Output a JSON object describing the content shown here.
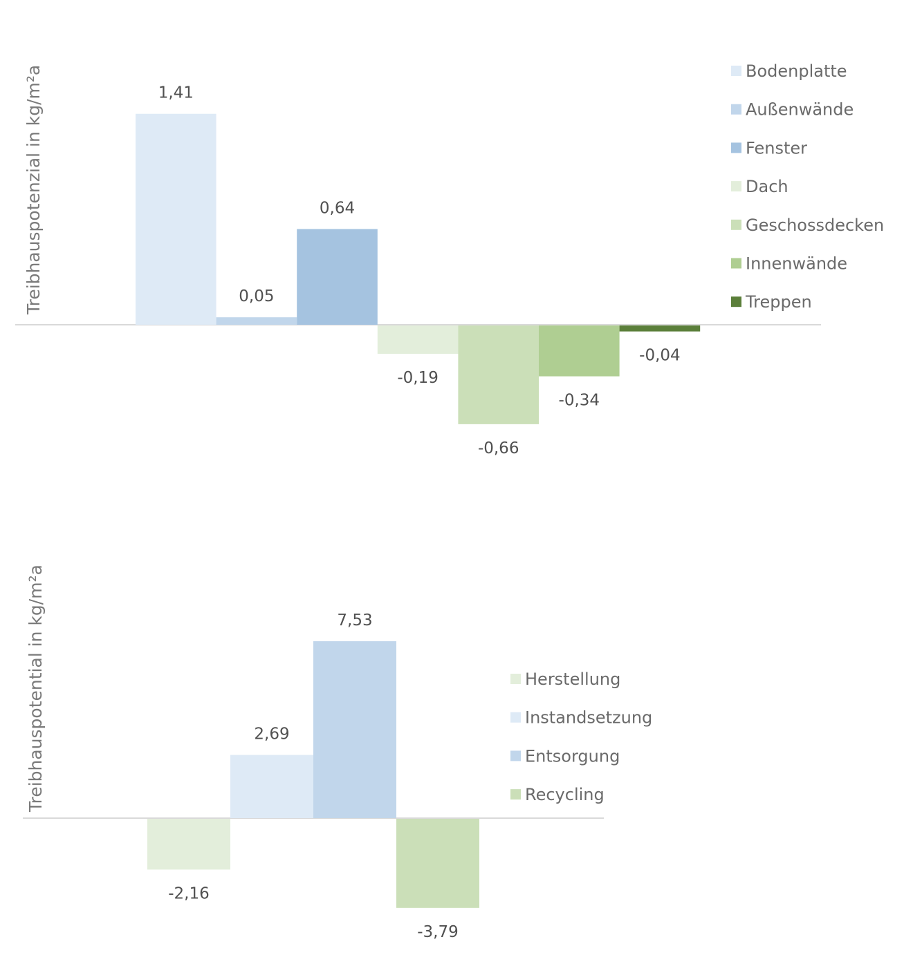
{
  "chart_data": [
    {
      "type": "bar",
      "title": "",
      "xlabel": "",
      "ylabel": "Treibhauspotenzial in kg/m²a",
      "grid": false,
      "legend_position": "right",
      "categories": [
        "Bodenplatte",
        "Außenwände",
        "Fenster",
        "Dach",
        "Geschossdecken",
        "Innenwände",
        "Treppen"
      ],
      "series": [
        {
          "name": "Bodenplatte",
          "values": [
            1.41
          ],
          "label": "1,41",
          "color": "#DEEAF6"
        },
        {
          "name": "Außenwände",
          "values": [
            0.05
          ],
          "label": "0,05",
          "color": "#C1D6EB"
        },
        {
          "name": "Fenster",
          "values": [
            0.64
          ],
          "label": "0,64",
          "color": "#A5C3E0"
        },
        {
          "name": "Dach",
          "values": [
            -0.19
          ],
          "label": "-0,19",
          "color": "#E3EEDB"
        },
        {
          "name": "Geschossdecken",
          "values": [
            -0.66
          ],
          "label": "-0,66",
          "color": "#CBDFB8"
        },
        {
          "name": "Innenwände",
          "values": [
            -0.34
          ],
          "label": "-0,34",
          "color": "#AFCE92"
        },
        {
          "name": "Treppen",
          "values": [
            -0.04
          ],
          "label": "-0,04",
          "color": "#5B7F3A"
        }
      ]
    },
    {
      "type": "bar",
      "title": "",
      "xlabel": "",
      "ylabel": "Treibhauspotential in kg/m²a",
      "grid": false,
      "legend_position": "right",
      "categories": [
        "Herstellung",
        "Instandsetzung",
        "Entsorgung",
        "Recycling"
      ],
      "series": [
        {
          "name": "Herstellung",
          "values": [
            -2.16
          ],
          "label": "-2,16",
          "color": "#E3EEDB"
        },
        {
          "name": "Instandsetzung",
          "values": [
            2.69
          ],
          "label": "2,69",
          "color": "#DEEAF6"
        },
        {
          "name": "Entsorgung",
          "values": [
            7.53
          ],
          "label": "7,53",
          "color": "#C1D6EB"
        },
        {
          "name": "Recycling",
          "values": [
            -3.79
          ],
          "label": "-3,79",
          "color": "#CBDFB8"
        }
      ]
    }
  ]
}
